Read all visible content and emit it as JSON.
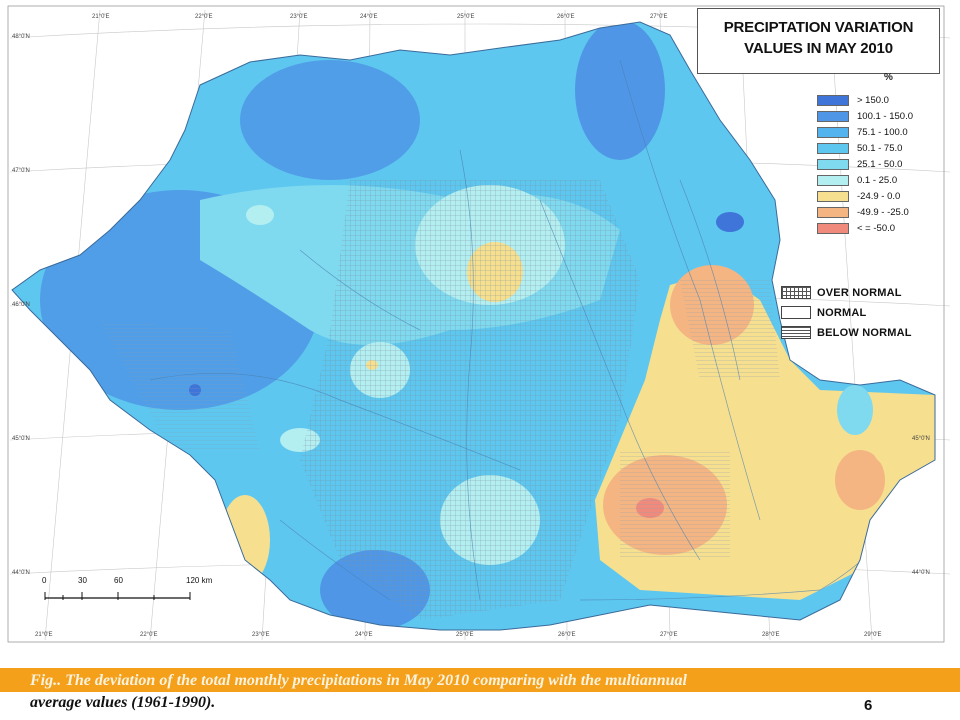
{
  "map": {
    "title_line1": "PRECIPTATION VARIATION",
    "title_line2": "VALUES IN MAY 2010",
    "legend_unit": "%",
    "legend": [
      {
        "label": "> 150.0",
        "color": "#3f74d8"
      },
      {
        "label": "100.1 - 150.0",
        "color": "#4f97e6"
      },
      {
        "label": "75.1 - 100.0",
        "color": "#52b3ee"
      },
      {
        "label": "50.1 - 75.0",
        "color": "#5ec7ef"
      },
      {
        "label": "25.1 - 50.0",
        "color": "#7fd9ef"
      },
      {
        "label": "0.1 - 25.0",
        "color": "#b3eef0"
      },
      {
        "label": "-24.9 - 0.0",
        "color": "#f6df8f"
      },
      {
        "label": "-49.9 - -25.0",
        "color": "#f4b582"
      },
      {
        "label": "< = -50.0",
        "color": "#ef8a7d"
      }
    ],
    "pattern_legend": [
      {
        "label": "OVER NORMAL",
        "pattern": "grid"
      },
      {
        "label": "NORMAL",
        "pattern": "none"
      },
      {
        "label": "BELOW NORMAL",
        "pattern": "horizontal-lines"
      }
    ],
    "scale": {
      "ticks": [
        "0",
        "30",
        "60",
        "120 km"
      ]
    },
    "top_lon_labels": [
      "21°0'E",
      "22°0'E",
      "23°0'E",
      "24°0'E",
      "25°0'E",
      "26°0'E",
      "27°0'E"
    ],
    "bottom_lon_labels": [
      "21°0'E",
      "22°0'E",
      "23°0'E",
      "24°0'E",
      "25°0'E",
      "26°0'E",
      "27°0'E",
      "28°0'E",
      "29°0'E"
    ],
    "lat_labels_left": [
      "48°0'N",
      "47°0'N",
      "46°0'N",
      "45°0'N",
      "44°0'N"
    ],
    "lat_labels_right": [
      "45°0'N",
      "44°0'N"
    ]
  },
  "caption": {
    "line1": "Fig.. The deviation of the total monthly precipitations in May 2010 comparing with the multiannual",
    "line2": "average values (1961-1990).",
    "slide_number": "6"
  }
}
